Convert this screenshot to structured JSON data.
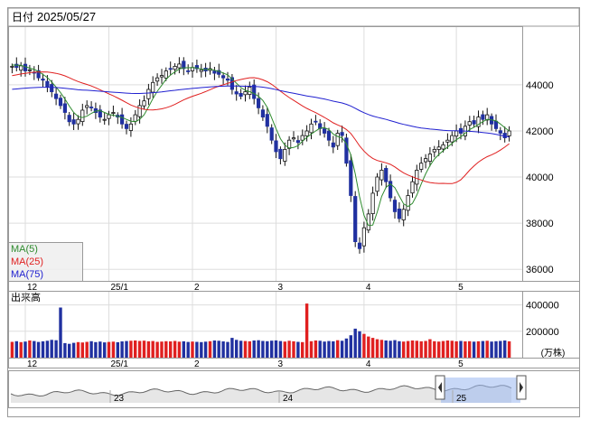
{
  "header": {
    "date_label": "日付",
    "date_value": "2025/05/27"
  },
  "legend": {
    "ma5": "MA(5)",
    "ma25": "MA(25)",
    "ma75": "MA(75)",
    "ma5_color": "#2e8b2e",
    "ma25_color": "#e02020",
    "ma75_color": "#2020d0"
  },
  "volume_label": "出来高",
  "volume_unit": "(万株)",
  "chart_data": [
    {
      "type": "candlestick",
      "title": "",
      "y_ticks": [
        "44000",
        "42000",
        "40000",
        "38000",
        "36000"
      ],
      "ylim": [
        35500,
        46500
      ],
      "x_month_labels": [
        "12",
        "25/1",
        "2",
        "3",
        "4",
        "5"
      ],
      "grid": true,
      "up_color": "#ffffff",
      "down_color": "#2030a0",
      "closes": [
        44800,
        44750,
        44820,
        44600,
        44650,
        44500,
        44300,
        44200,
        43900,
        43700,
        43400,
        43100,
        42800,
        42400,
        42300,
        42500,
        42900,
        43100,
        43000,
        42800,
        42600,
        42500,
        42700,
        42800,
        42600,
        42300,
        42100,
        42300,
        42700,
        43100,
        43300,
        43800,
        44100,
        44300,
        44400,
        44600,
        44700,
        44800,
        44900,
        44700,
        44600,
        44750,
        44700,
        44650,
        44600,
        44700,
        44500,
        44450,
        44300,
        44200,
        43800,
        43600,
        43500,
        43700,
        43900,
        43400,
        43000,
        42600,
        42200,
        41600,
        41100,
        40800,
        41200,
        41600,
        41700,
        41500,
        41800,
        42000,
        42300,
        42400,
        42100,
        41900,
        41600,
        41300,
        41900,
        41800,
        40600,
        39200,
        37200,
        36900,
        37800,
        38400,
        39300,
        40000,
        40300,
        39800,
        39100,
        38500,
        38200,
        38600,
        39200,
        39800,
        40300,
        40600,
        40800,
        41000,
        41200,
        41300,
        41400,
        41600,
        41800,
        42000,
        41900,
        42200,
        42400,
        42300,
        42600,
        42500,
        42700,
        42300,
        42100,
        41900,
        41700,
        42000
      ]
    },
    {
      "type": "bar",
      "title": "",
      "y_ticks": [
        "400000",
        "200000"
      ],
      "ylim": [
        0,
        500000
      ],
      "values": [
        120000,
        125000,
        118000,
        122000,
        130000,
        126000,
        119000,
        124000,
        128000,
        135000,
        132000,
        380000,
        110000,
        105000,
        112000,
        118000,
        115000,
        120000,
        125000,
        118000,
        122000,
        116000,
        119000,
        121000,
        117000,
        123000,
        126000,
        128000,
        130000,
        127000,
        129000,
        124000,
        126000,
        120000,
        122000,
        125000,
        123000,
        127000,
        121000,
        124000,
        119000,
        122000,
        120000,
        118000,
        121000,
        125000,
        130000,
        128000,
        123000,
        119000,
        150000,
        135000,
        128000,
        126000,
        124000,
        130000,
        132000,
        127000,
        125000,
        129000,
        131000,
        126000,
        122000,
        128000,
        124000,
        120000,
        118000,
        410000,
        125000,
        130000,
        128000,
        122000,
        126000,
        124000,
        132000,
        128000,
        145000,
        170000,
        220000,
        200000,
        180000,
        160000,
        150000,
        140000,
        135000,
        130000,
        128000,
        133000,
        125000,
        122000,
        126000,
        130000,
        128000,
        124000,
        127000,
        140000,
        125000,
        122000,
        126000,
        130000,
        128000,
        124000,
        127000,
        123000,
        125000,
        121000,
        124000,
        126000,
        128000,
        122000,
        125000,
        127000,
        130000,
        124000
      ],
      "x_month_labels": [
        "12",
        "25/1",
        "2",
        "3",
        "4",
        "5"
      ]
    },
    {
      "type": "area",
      "title": "",
      "x_year_labels": [
        "23",
        "24",
        "25"
      ]
    }
  ]
}
